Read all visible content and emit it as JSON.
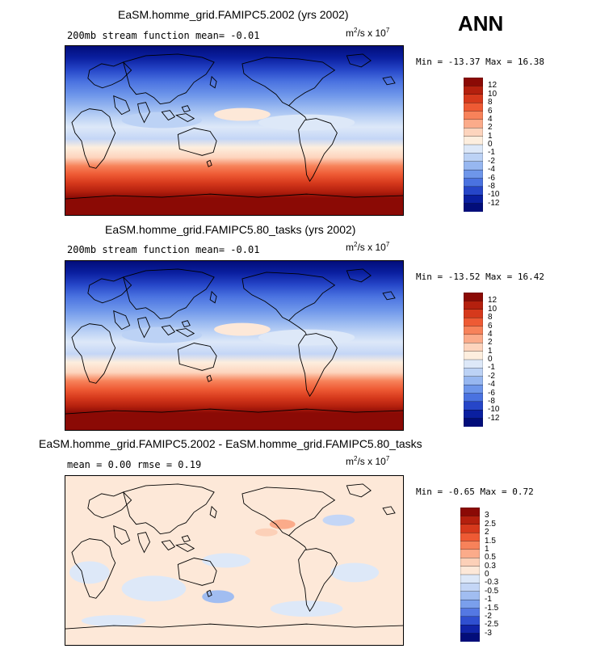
{
  "season": "ANN",
  "units_base": "m",
  "units_sup1": "2",
  "units_mid": "/s x 10",
  "units_sup2": "7",
  "panels": [
    {
      "title": "EaSM.homme_grid.FAMIPC5.2002 (yrs 2002)",
      "subtitle": "200mb stream function   mean=  -0.01",
      "minmax": "Min = -13.37 Max =  16.38",
      "colorbar_levels": [
        "12",
        "10",
        "8",
        "6",
        "4",
        "2",
        "1",
        "0",
        "-1",
        "-2",
        "-4",
        "-6",
        "-8",
        "-10",
        "-12"
      ]
    },
    {
      "title": "EaSM.homme_grid.FAMIPC5.80_tasks (yrs 2002)",
      "subtitle": "200mb stream function   mean=  -0.01",
      "minmax": "Min = -13.52 Max =  16.42",
      "colorbar_levels": [
        "12",
        "10",
        "8",
        "6",
        "4",
        "2",
        "1",
        "0",
        "-1",
        "-2",
        "-4",
        "-6",
        "-8",
        "-10",
        "-12"
      ]
    },
    {
      "title": "EaSM.homme_grid.FAMIPC5.2002 - EaSM.homme_grid.FAMIPC5.80_tasks",
      "subtitle": "mean =   0.00          rmse =   0.19",
      "minmax": "Min =  -0.65 Max =   0.72",
      "colorbar_levels": [
        "3",
        "2.5",
        "2",
        "1.5",
        "1",
        "0.5",
        "0.3",
        "0",
        "-0.3",
        "-0.5",
        "-1",
        "-1.5",
        "-2",
        "-2.5",
        "-3"
      ]
    }
  ],
  "colors": {
    "field_colorbar": [
      "#8b0a05",
      "#b4200e",
      "#d6391c",
      "#ee5a34",
      "#f7825a",
      "#fbab8a",
      "#fdd4bd",
      "#fdeede",
      "#dde8f8",
      "#bcd2f5",
      "#97b7f0",
      "#6e96ea",
      "#4a72e0",
      "#2646c8",
      "#0a1fa0",
      "#020d7a"
    ],
    "diff_colorbar": [
      "#8b0a05",
      "#b4200e",
      "#d6391c",
      "#ee5a34",
      "#f7825a",
      "#fbab8a",
      "#fcd0b8",
      "#fde8d8",
      "#dde8f8",
      "#c4d6f6",
      "#a1bdf1",
      "#7a9fec",
      "#5478e3",
      "#2f4fd0",
      "#1024a8",
      "#020d7a"
    ]
  },
  "chart_data": [
    {
      "type": "heatmap",
      "title": "EaSM.homme_grid.FAMIPC5.2002 (yrs 2002)",
      "variable": "200mb stream function",
      "mean": -0.01,
      "min": -13.37,
      "max": 16.38,
      "levels": [
        -12,
        -10,
        -8,
        -6,
        -4,
        -2,
        -1,
        0,
        1,
        2,
        4,
        6,
        8,
        10,
        12
      ]
    },
    {
      "type": "heatmap",
      "title": "EaSM.homme_grid.FAMIPC5.80_tasks (yrs 2002)",
      "variable": "200mb stream function",
      "mean": -0.01,
      "min": -13.52,
      "max": 16.42,
      "levels": [
        -12,
        -10,
        -8,
        -6,
        -4,
        -2,
        -1,
        0,
        1,
        2,
        4,
        6,
        8,
        10,
        12
      ]
    },
    {
      "type": "heatmap",
      "title": "EaSM.homme_grid.FAMIPC5.2002 - EaSM.homme_grid.FAMIPC5.80_tasks",
      "mean": 0.0,
      "rmse": 0.19,
      "min": -0.65,
      "max": 0.72,
      "levels": [
        -3,
        -2.5,
        -2,
        -1.5,
        -1,
        -0.5,
        -0.3,
        0,
        0.3,
        0.5,
        1,
        1.5,
        2,
        2.5,
        3
      ]
    }
  ]
}
